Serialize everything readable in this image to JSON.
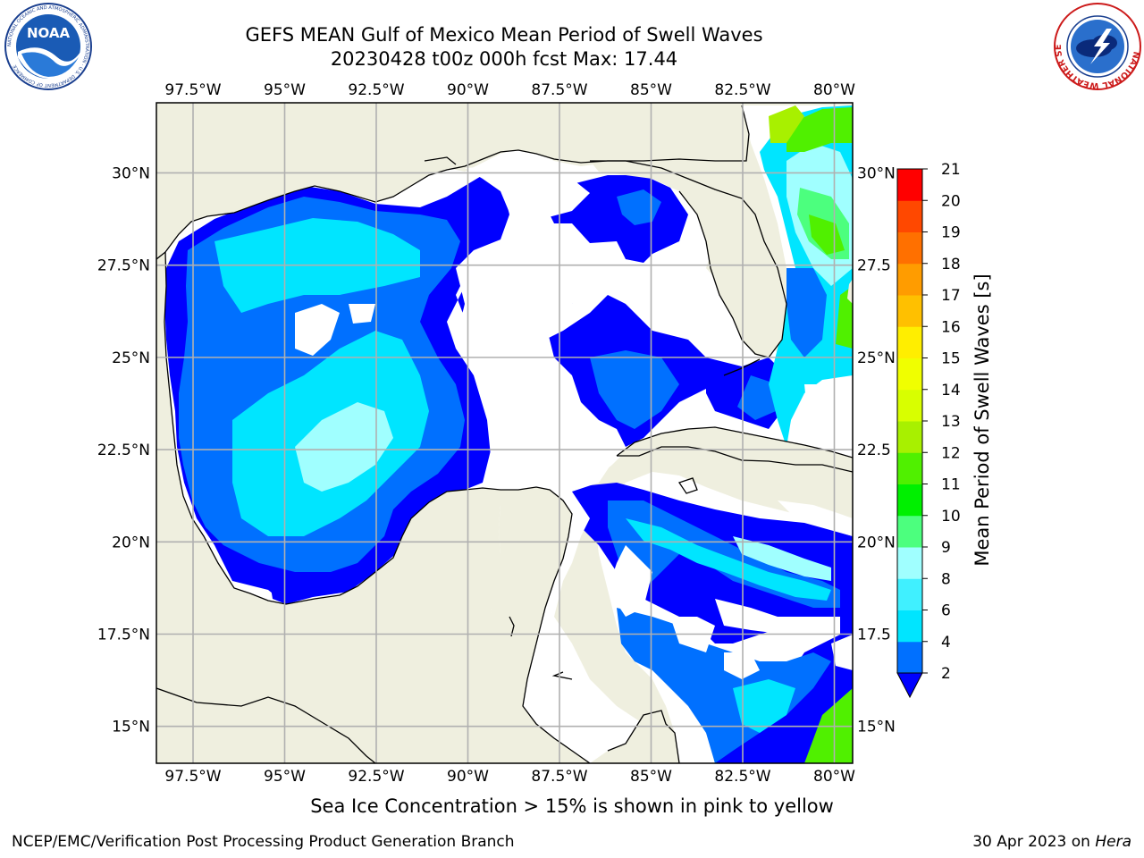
{
  "title_line1": "GEFS MEAN Gulf of Mexico Mean Period of Swell Waves",
  "title_line2": "20230428 t00z 000h fcst   Max: 17.44",
  "lon_labels": [
    "97.5°W",
    "95°W",
    "92.5°W",
    "90°W",
    "87.5°W",
    "85°W",
    "82.5°W",
    "80°W"
  ],
  "lat_labels": [
    "30°N",
    "27.5°N",
    "25°N",
    "22.5°N",
    "20°N",
    "17.5°N",
    "15°N"
  ],
  "lat_labels_right": [
    "30°N",
    "27.5",
    "25°N",
    "22.5",
    "20°N",
    "17.5",
    "15°N"
  ],
  "colorbar": {
    "label": "Mean Period of Swell Waves [s]",
    "ticks": [
      "2",
      "4",
      "6",
      "8",
      "9",
      "10",
      "11",
      "12",
      "13",
      "14",
      "15",
      "16",
      "17",
      "18",
      "19",
      "20",
      "21"
    ],
    "colors": [
      "#0070ff",
      "#00e5ff",
      "#40f0ff",
      "#a0ffff",
      "#4cff7e",
      "#00f000",
      "#50f000",
      "#a8f000",
      "#d8ff00",
      "#f0ff00",
      "#ffee00",
      "#ffc000",
      "#ff9c00",
      "#ff7000",
      "#ff4800",
      "#ff0000"
    ],
    "under_color": "#0000ff"
  },
  "colors": {
    "land": "#efefdf",
    "water_nodata": "#ffffff",
    "grid": "#b0b0b0"
  },
  "caption": "Sea Ice Concentration > 15% is shown in pink to yellow",
  "footer_left": "NCEP/EMC/Verification Post Processing Product Generation Branch",
  "footer_right_date": "30 Apr 2023 on ",
  "footer_right_host": "Hera",
  "logos": {
    "noaa_text": "NOAA",
    "noaa_ring": "NATIONAL OCEANIC AND ATMOSPHERIC ADMINISTRATION · U.S. DEPARTMENT OF COMMERCE",
    "nws_ring": "NATIONAL WEATHER SERVICE"
  }
}
